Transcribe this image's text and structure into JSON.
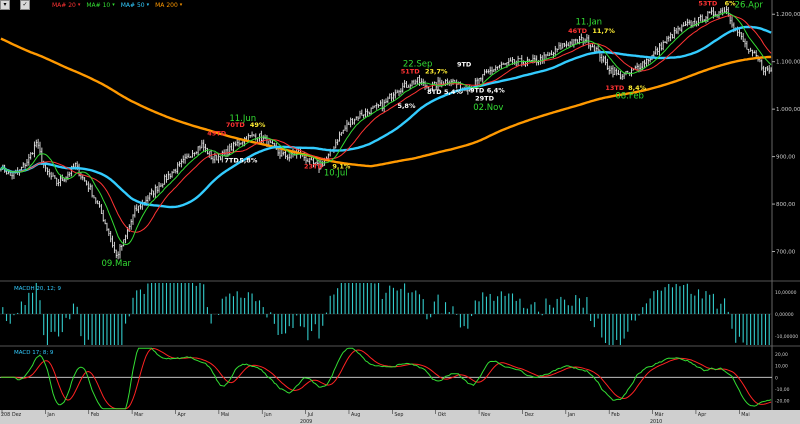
{
  "toolbar": {
    "menu_glyph": "▾",
    "check_glyph": "✓",
    "legend": [
      {
        "label": "MA# 20",
        "color": "#ff3333"
      },
      {
        "label": "MA# 10",
        "color": "#33dd33"
      },
      {
        "label": "MA# 50",
        "color": "#33ccff"
      },
      {
        "label": "MA 200",
        "color": "#ff9900"
      }
    ]
  },
  "chart_data": [
    {
      "type": "ohlc",
      "title": "",
      "y_ticks": [
        700,
        800,
        900,
        1000,
        1100,
        1200
      ],
      "y_tick_labels": [
        "700,00",
        "800,00",
        "900,00",
        "1.000,00",
        "1.100,00",
        "1.200,00"
      ],
      "ylim": [
        640,
        1230
      ],
      "x_ticks": [
        "Dez",
        "Jan",
        "Feb",
        "Mar",
        "Apr",
        "Mai",
        "Jun",
        "Jul",
        "Aug",
        "Sep",
        "Okt",
        "Nov",
        "Dez",
        "Jan",
        "Feb",
        "Mär",
        "Apr",
        "Mai"
      ],
      "x_first_tick_prefix": "208",
      "years": [
        "2009",
        "2010"
      ],
      "price_anchors": [
        {
          "d": 0,
          "v": 880
        },
        {
          "d": 5,
          "v": 860
        },
        {
          "d": 10,
          "v": 870
        },
        {
          "d": 15,
          "v": 895
        },
        {
          "d": 19,
          "v": 930
        },
        {
          "d": 24,
          "v": 870
        },
        {
          "d": 30,
          "v": 845
        },
        {
          "d": 35,
          "v": 858
        },
        {
          "d": 40,
          "v": 882
        },
        {
          "d": 43,
          "v": 860
        },
        {
          "d": 48,
          "v": 832
        },
        {
          "d": 53,
          "v": 790
        },
        {
          "d": 58,
          "v": 740
        },
        {
          "d": 62,
          "v": 690
        },
        {
          "d": 66,
          "v": 720
        },
        {
          "d": 72,
          "v": 785
        },
        {
          "d": 78,
          "v": 810
        },
        {
          "d": 84,
          "v": 835
        },
        {
          "d": 90,
          "v": 860
        },
        {
          "d": 96,
          "v": 880
        },
        {
          "d": 103,
          "v": 910
        },
        {
          "d": 108,
          "v": 925
        },
        {
          "d": 114,
          "v": 895
        },
        {
          "d": 120,
          "v": 905
        },
        {
          "d": 126,
          "v": 925
        },
        {
          "d": 132,
          "v": 940
        },
        {
          "d": 138,
          "v": 945
        },
        {
          "d": 144,
          "v": 928
        },
        {
          "d": 150,
          "v": 905
        },
        {
          "d": 155,
          "v": 900
        },
        {
          "d": 160,
          "v": 910
        },
        {
          "d": 166,
          "v": 888
        },
        {
          "d": 171,
          "v": 878
        },
        {
          "d": 176,
          "v": 900
        },
        {
          "d": 182,
          "v": 945
        },
        {
          "d": 188,
          "v": 975
        },
        {
          "d": 194,
          "v": 990
        },
        {
          "d": 200,
          "v": 1000
        },
        {
          "d": 206,
          "v": 1010
        },
        {
          "d": 212,
          "v": 1040
        },
        {
          "d": 218,
          "v": 1050
        },
        {
          "d": 224,
          "v": 1060
        },
        {
          "d": 230,
          "v": 1045
        },
        {
          "d": 236,
          "v": 1055
        },
        {
          "d": 242,
          "v": 1062
        },
        {
          "d": 248,
          "v": 1043
        },
        {
          "d": 254,
          "v": 1050
        },
        {
          "d": 260,
          "v": 1072
        },
        {
          "d": 266,
          "v": 1088
        },
        {
          "d": 272,
          "v": 1095
        },
        {
          "d": 278,
          "v": 1100
        },
        {
          "d": 284,
          "v": 1098
        },
        {
          "d": 290,
          "v": 1105
        },
        {
          "d": 296,
          "v": 1115
        },
        {
          "d": 302,
          "v": 1135
        },
        {
          "d": 308,
          "v": 1140
        },
        {
          "d": 314,
          "v": 1148
        },
        {
          "d": 320,
          "v": 1125
        },
        {
          "d": 326,
          "v": 1090
        },
        {
          "d": 332,
          "v": 1070
        },
        {
          "d": 338,
          "v": 1075
        },
        {
          "d": 344,
          "v": 1095
        },
        {
          "d": 350,
          "v": 1112
        },
        {
          "d": 356,
          "v": 1138
        },
        {
          "d": 362,
          "v": 1160
        },
        {
          "d": 368,
          "v": 1175
        },
        {
          "d": 374,
          "v": 1185
        },
        {
          "d": 380,
          "v": 1198
        },
        {
          "d": 386,
          "v": 1205
        },
        {
          "d": 390,
          "v": 1210
        },
        {
          "d": 394,
          "v": 1175
        },
        {
          "d": 398,
          "v": 1150
        },
        {
          "d": 402,
          "v": 1120
        },
        {
          "d": 406,
          "v": 1110
        },
        {
          "d": 410,
          "v": 1085
        },
        {
          "d": 414,
          "v": 1080
        }
      ],
      "annotations": [
        {
          "text": "09.Mar",
          "color": "#33dd33",
          "at": 62,
          "price": 670
        },
        {
          "text": "11.Jun",
          "color": "#33dd33",
          "at": 130,
          "price": 975
        },
        {
          "text": "49TD",
          "color": "#ff3333",
          "at": 116,
          "price": 945
        },
        {
          "text": "70TD",
          "color": "#ff3333",
          "at": 126,
          "price": 962
        },
        {
          "text": "49%",
          "color": "#ffee33",
          "at": 138,
          "price": 962
        },
        {
          "text": "7TD",
          "color": "#ffffff",
          "at": 124,
          "price": 888
        },
        {
          "text": "5,8%",
          "color": "#ffffff",
          "at": 133,
          "price": 888
        },
        {
          "text": "23TD",
          "color": "#ff3333",
          "at": 168,
          "price": 875
        },
        {
          "text": "9,1%",
          "color": "#ffee33",
          "at": 183,
          "price": 875
        },
        {
          "text": "10.Jul",
          "color": "#33dd33",
          "at": 180,
          "price": 860
        },
        {
          "text": "22.Sep",
          "color": "#33dd33",
          "at": 224,
          "price": 1090
        },
        {
          "text": "51TD",
          "color": "#ff3333",
          "at": 220,
          "price": 1075
        },
        {
          "text": "23,7%",
          "color": "#ffee33",
          "at": 234,
          "price": 1075
        },
        {
          "text": "9TD",
          "color": "#ffffff",
          "at": 249,
          "price": 1090
        },
        {
          "text": "5,8%",
          "color": "#ffffff",
          "at": 218,
          "price": 1002
        },
        {
          "text": "8TD",
          "color": "#ffffff",
          "at": 233,
          "price": 1032
        },
        {
          "text": "5,4%",
          "color": "#ffffff",
          "at": 243,
          "price": 1032
        },
        {
          "text": "9TD",
          "color": "#ffffff",
          "at": 256,
          "price": 1035
        },
        {
          "text": "6,4%",
          "color": "#ffffff",
          "at": 266,
          "price": 1035
        },
        {
          "text": "29TD",
          "color": "#ffffff",
          "at": 260,
          "price": 1018
        },
        {
          "text": "02.Nov",
          "color": "#33dd33",
          "at": 262,
          "price": 998
        },
        {
          "text": "11.Jan",
          "color": "#33dd33",
          "at": 316,
          "price": 1178
        },
        {
          "text": "46TD",
          "color": "#ff3333",
          "at": 310,
          "price": 1160
        },
        {
          "text": "11,7%",
          "color": "#ffee33",
          "at": 324,
          "price": 1160
        },
        {
          "text": "13TD",
          "color": "#ff3333",
          "at": 330,
          "price": 1040
        },
        {
          "text": "8,4%",
          "color": "#ffee33",
          "at": 342,
          "price": 1040
        },
        {
          "text": "08.Feb",
          "color": "#33dd33",
          "at": 338,
          "price": 1022
        },
        {
          "text": "53TD",
          "color": "#ff3333",
          "at": 380,
          "price": 1218
        },
        {
          "text": "6%",
          "color": "#ffee33",
          "at": 392,
          "price": 1218
        },
        {
          "text": "26.Apr",
          "color": "#33dd33",
          "at": 402,
          "price": 1214
        }
      ]
    },
    {
      "type": "bar",
      "title": "MACDH 20, 12; 9",
      "y_tick_labels": [
        "10,00000",
        "0,00000",
        "-10,00000"
      ],
      "ylim": [
        -14,
        14
      ]
    },
    {
      "type": "line",
      "title": "MACD 17; 8; 9",
      "y_tick_labels": [
        "20,00",
        "10,00",
        "0",
        "-10,00",
        "-20,00"
      ],
      "ylim": [
        -28,
        26
      ]
    }
  ]
}
